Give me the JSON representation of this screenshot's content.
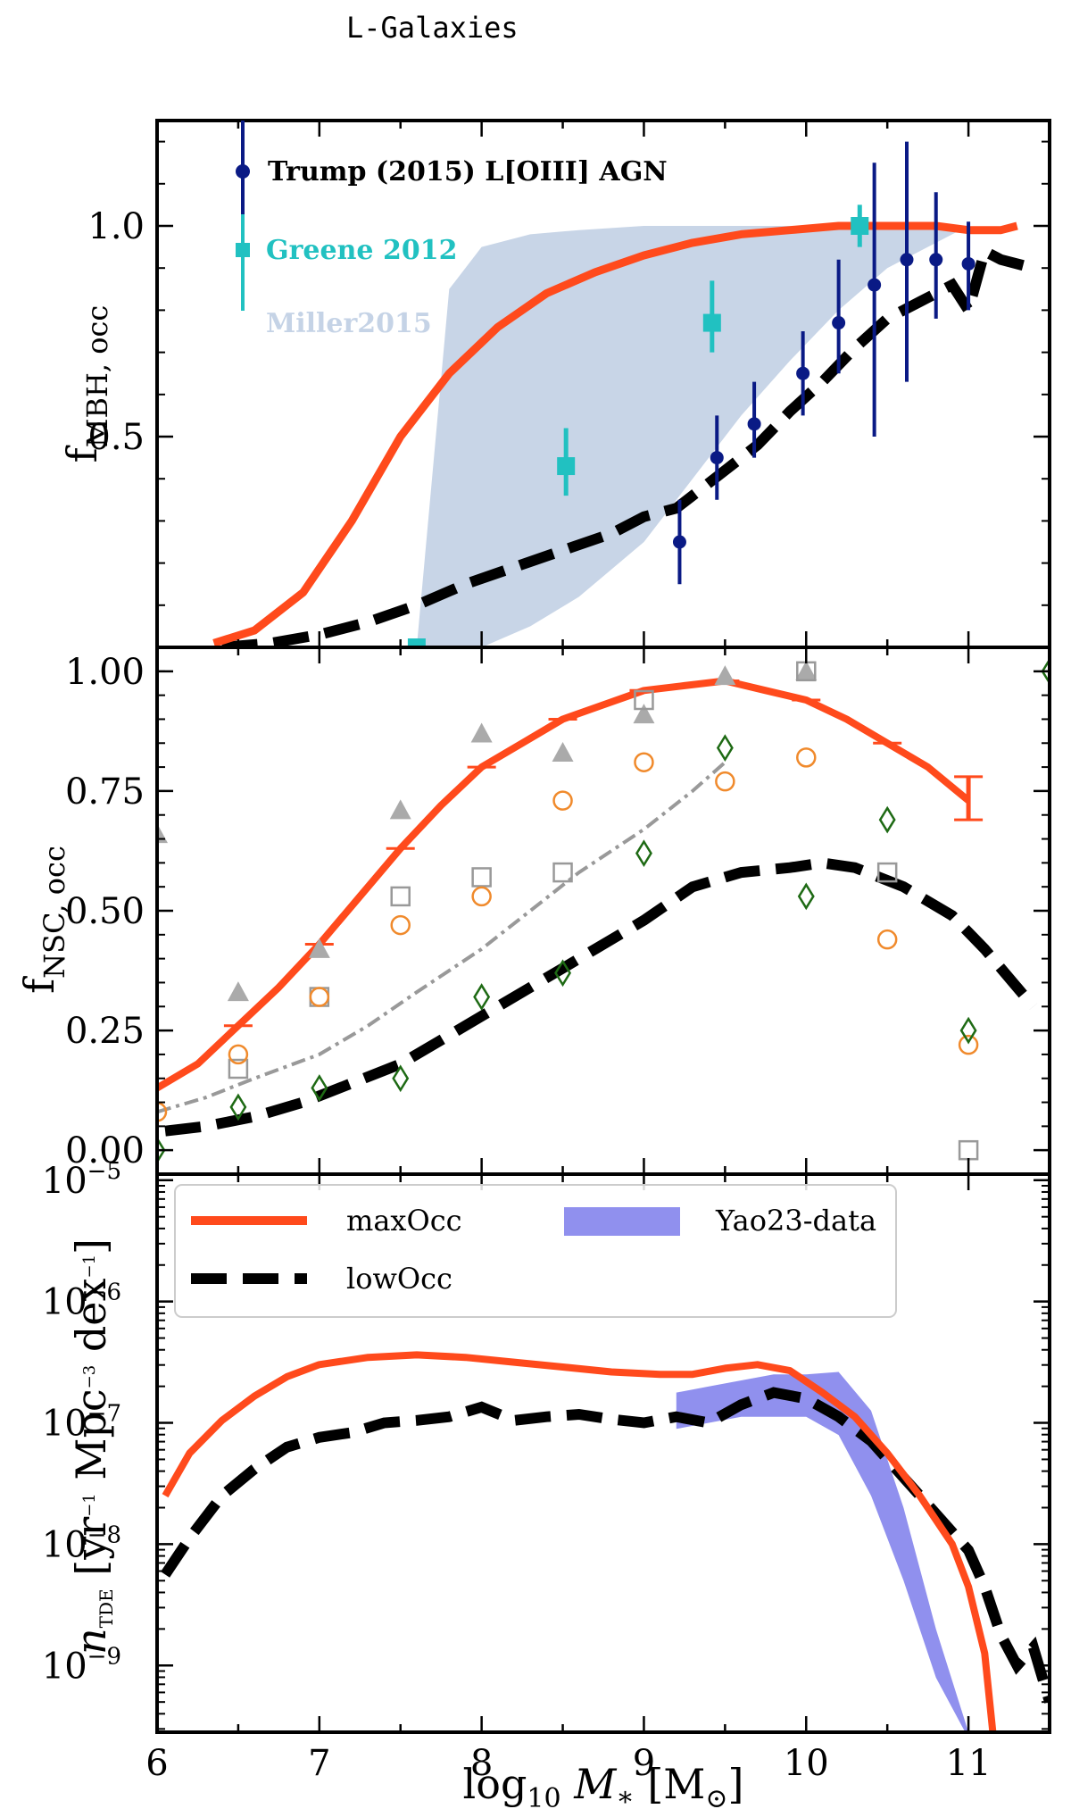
{
  "figure_title": "L-Galaxies",
  "colors": {
    "maxOcc": "#ff4a1c",
    "lowOcc": "#000000",
    "trump": "#0a1a85",
    "greene": "#21c1c1",
    "miller": "#c5d3e6",
    "yao": "#7c7ceb",
    "gray_line": "#999999",
    "triangle": "#aaaaaa",
    "square": "#999999",
    "circle": "#f08a2c",
    "diamond": "#1e6a14"
  },
  "chart_data": [
    {
      "id": "top",
      "type": "line",
      "ylabel_main": "f",
      "ylabel_sub": "MBH, occ",
      "xlim": [
        6,
        11.5
      ],
      "ylim": [
        0,
        1.25
      ],
      "yticks": [
        {
          "v": 0.5,
          "label": "0.5"
        },
        {
          "v": 1.0,
          "label": "1.0"
        }
      ],
      "legend": {
        "trump": "Trump (2015) L[OIII] AGN",
        "greene": "Greene 2012",
        "miller": "Miller2015"
      },
      "series": [
        {
          "name": "maxOcc",
          "x": [
            6.35,
            6.6,
            6.9,
            7.2,
            7.5,
            7.8,
            8.1,
            8.4,
            8.7,
            9.0,
            9.3,
            9.6,
            9.9,
            10.2,
            10.5,
            10.8,
            11.0,
            11.2,
            11.3
          ],
          "y": [
            0.01,
            0.04,
            0.13,
            0.3,
            0.5,
            0.65,
            0.76,
            0.84,
            0.89,
            0.93,
            0.96,
            0.98,
            0.99,
            1.0,
            1.0,
            1.0,
            0.99,
            0.99,
            1.0
          ]
        },
        {
          "name": "lowOcc",
          "x": [
            6.4,
            6.7,
            7.0,
            7.3,
            7.6,
            7.9,
            8.2,
            8.5,
            8.8,
            9.0,
            9.2,
            9.3,
            9.5,
            9.7,
            9.9,
            10.1,
            10.3,
            10.5,
            10.7,
            10.9,
            11.0,
            11.1,
            11.2,
            11.4
          ],
          "y": [
            0.0,
            0.01,
            0.03,
            0.06,
            0.1,
            0.15,
            0.19,
            0.23,
            0.27,
            0.31,
            0.33,
            0.36,
            0.42,
            0.48,
            0.56,
            0.63,
            0.71,
            0.78,
            0.82,
            0.86,
            0.8,
            0.94,
            0.92,
            0.9
          ]
        },
        {
          "name": "Trump",
          "points": [
            {
              "x": 6.25,
              "y": 1.14,
              "lo": 0.93,
              "hi": 1.36
            },
            {
              "x": 9.22,
              "y": 0.25,
              "lo": 0.15,
              "hi": 0.35
            },
            {
              "x": 9.45,
              "y": 0.45,
              "lo": 0.35,
              "hi": 0.55
            },
            {
              "x": 9.68,
              "y": 0.53,
              "lo": 0.45,
              "hi": 0.63
            },
            {
              "x": 9.98,
              "y": 0.65,
              "lo": 0.55,
              "hi": 0.75
            },
            {
              "x": 10.2,
              "y": 0.77,
              "lo": 0.65,
              "hi": 0.92
            },
            {
              "x": 10.42,
              "y": 0.86,
              "lo": 0.5,
              "hi": 1.15
            },
            {
              "x": 10.62,
              "y": 0.92,
              "lo": 0.63,
              "hi": 1.2
            },
            {
              "x": 10.8,
              "y": 0.92,
              "lo": 0.78,
              "hi": 1.08
            },
            {
              "x": 11.0,
              "y": 0.91,
              "lo": 0.8,
              "hi": 1.01
            }
          ]
        },
        {
          "name": "Greene",
          "points": [
            {
              "x": 6.25,
              "y": 0.98,
              "lo": 0.8,
              "hi": 1.18
            },
            {
              "x": 7.6,
              "y": 0.0,
              "lo": 0.0,
              "hi": 0.0
            },
            {
              "x": 8.52,
              "y": 0.43,
              "lo": 0.36,
              "hi": 0.52
            },
            {
              "x": 9.42,
              "y": 0.77,
              "lo": 0.7,
              "hi": 0.87
            },
            {
              "x": 10.33,
              "y": 1.0,
              "lo": 0.95,
              "hi": 1.05
            }
          ]
        },
        {
          "name": "Miller2015",
          "band_x": [
            7.6,
            7.8,
            8.0,
            8.3,
            8.6,
            9.0,
            9.3,
            9.6,
            9.9,
            10.2,
            10.5,
            10.8,
            11.0
          ],
          "band_lo": [
            0.0,
            0.0,
            0.0,
            0.05,
            0.12,
            0.25,
            0.4,
            0.55,
            0.68,
            0.8,
            0.9,
            0.96,
            1.0
          ],
          "band_hi": [
            0.0,
            0.85,
            0.95,
            0.98,
            0.99,
            1.0,
            1.0,
            1.0,
            1.0,
            1.0,
            1.0,
            1.0,
            1.0
          ]
        }
      ]
    },
    {
      "id": "middle",
      "type": "line",
      "ylabel_main": "f",
      "ylabel_sub": "NSC, occ",
      "xlim": [
        6,
        11.5
      ],
      "ylim": [
        -0.05,
        1.05
      ],
      "yticks": [
        {
          "v": 0.0,
          "label": "0.00"
        },
        {
          "v": 0.25,
          "label": "0.25"
        },
        {
          "v": 0.5,
          "label": "0.50"
        },
        {
          "v": 0.75,
          "label": "0.75"
        },
        {
          "v": 1.0,
          "label": "1.00"
        }
      ],
      "series": [
        {
          "name": "maxOcc",
          "x": [
            6.0,
            6.25,
            6.5,
            6.75,
            7.0,
            7.25,
            7.5,
            7.75,
            8.0,
            8.25,
            8.5,
            8.75,
            9.0,
            9.25,
            9.5,
            9.75,
            10.0,
            10.25,
            10.5,
            10.75,
            11.0
          ],
          "y": [
            0.13,
            0.18,
            0.26,
            0.34,
            0.43,
            0.53,
            0.63,
            0.72,
            0.8,
            0.85,
            0.9,
            0.93,
            0.96,
            0.97,
            0.98,
            0.96,
            0.94,
            0.9,
            0.85,
            0.8,
            0.73
          ]
        },
        {
          "name": "maxOcc_err",
          "points": [
            {
              "x": 6.5,
              "y": 0.26,
              "lo": 0.26,
              "hi": 0.26
            },
            {
              "x": 7.0,
              "y": 0.43,
              "lo": 0.43,
              "hi": 0.43
            },
            {
              "x": 7.5,
              "y": 0.63,
              "lo": 0.63,
              "hi": 0.63
            },
            {
              "x": 8.0,
              "y": 0.8,
              "lo": 0.8,
              "hi": 0.8
            },
            {
              "x": 8.5,
              "y": 0.9,
              "lo": 0.9,
              "hi": 0.9
            },
            {
              "x": 9.0,
              "y": 0.96,
              "lo": 0.96,
              "hi": 0.96
            },
            {
              "x": 9.5,
              "y": 0.98,
              "lo": 0.98,
              "hi": 0.98
            },
            {
              "x": 10.0,
              "y": 0.94,
              "lo": 0.94,
              "hi": 0.94
            },
            {
              "x": 10.5,
              "y": 0.85,
              "lo": 0.85,
              "hi": 0.85
            },
            {
              "x": 11.0,
              "y": 0.73,
              "lo": 0.69,
              "hi": 0.78
            }
          ]
        },
        {
          "name": "lowOcc",
          "x": [
            6.05,
            6.3,
            6.6,
            6.9,
            7.2,
            7.5,
            7.8,
            8.1,
            8.4,
            8.7,
            9.0,
            9.3,
            9.6,
            9.9,
            10.1,
            10.3,
            10.6,
            10.9,
            11.1,
            11.4
          ],
          "y": [
            0.04,
            0.05,
            0.07,
            0.1,
            0.14,
            0.18,
            0.24,
            0.3,
            0.36,
            0.42,
            0.48,
            0.55,
            0.58,
            0.59,
            0.6,
            0.59,
            0.55,
            0.49,
            0.42,
            0.3
          ]
        },
        {
          "name": "grayDashDot",
          "x": [
            6.0,
            6.3,
            6.6,
            7.0,
            7.3,
            7.6,
            8.0,
            8.3,
            8.6,
            9.0,
            9.3,
            9.5
          ],
          "y": [
            0.08,
            0.11,
            0.15,
            0.2,
            0.26,
            0.33,
            0.42,
            0.5,
            0.58,
            0.67,
            0.75,
            0.81
          ]
        },
        {
          "name": "triangles",
          "x": [
            6.0,
            6.5,
            7.0,
            7.5,
            8.0,
            8.5,
            9.0,
            9.5,
            10.0
          ],
          "y": [
            0.66,
            0.33,
            0.42,
            0.71,
            0.87,
            0.83,
            0.91,
            0.99,
            1.0
          ]
        },
        {
          "name": "squares",
          "x": [
            6.5,
            7.0,
            7.5,
            8.0,
            8.5,
            9.0,
            10.0,
            10.5,
            11.0
          ],
          "y": [
            0.17,
            0.32,
            0.53,
            0.57,
            0.58,
            0.94,
            1.0,
            0.58,
            0.0
          ]
        },
        {
          "name": "circles",
          "x": [
            6.0,
            6.5,
            7.0,
            7.5,
            8.0,
            8.5,
            9.0,
            9.5,
            10.0,
            10.5,
            11.0
          ],
          "y": [
            0.08,
            0.2,
            0.32,
            0.47,
            0.53,
            0.73,
            0.81,
            0.77,
            0.82,
            0.44,
            0.22
          ]
        },
        {
          "name": "diamonds",
          "x": [
            6.0,
            6.5,
            7.0,
            7.5,
            8.0,
            8.5,
            9.0,
            9.5,
            10.0,
            10.5,
            11.0,
            11.5
          ],
          "y": [
            0.0,
            0.09,
            0.13,
            0.15,
            0.32,
            0.37,
            0.62,
            0.84,
            0.53,
            0.69,
            0.25,
            1.0
          ]
        }
      ]
    },
    {
      "id": "bottom",
      "type": "line",
      "ylabel": "ṅTDE [yr⁻¹ Mpc⁻³ dex⁻¹]",
      "ylabel_main": "n",
      "ylabel_sub": "TDE",
      "ylabel_unit": "[yr",
      "ylabel_unit2": "Mpc",
      "ylabel_unit3": "dex",
      "ylabel_sup": "−1",
      "ylabel_sup2": "−3",
      "ylabel_close": "]",
      "xlabel": "log10 M∗ [M⊙]",
      "xlabel_pre": "log",
      "xlabel_sub": "10",
      "xlabel_m": "M",
      "xlabel_star": "∗",
      "xlabel_unit": "[M",
      "xlabel_sun": "⊙",
      "xlabel_close": "]",
      "xlim": [
        6,
        11.5
      ],
      "ylim_log": [
        -9.55,
        -4.95
      ],
      "xticks": [
        {
          "v": 6,
          "label": "6"
        },
        {
          "v": 7,
          "label": "7"
        },
        {
          "v": 8,
          "label": "8"
        },
        {
          "v": 9,
          "label": "9"
        },
        {
          "v": 10,
          "label": "10"
        },
        {
          "v": 11,
          "label": "11"
        }
      ],
      "yticks": [
        {
          "v": -5,
          "base": "10",
          "exp": "−5"
        },
        {
          "v": -6,
          "base": "10",
          "exp": "−6"
        },
        {
          "v": -7,
          "base": "10",
          "exp": "−7"
        },
        {
          "v": -8,
          "base": "10",
          "exp": "−8"
        },
        {
          "v": -9,
          "base": "10",
          "exp": "−9"
        }
      ],
      "legend": {
        "maxOcc": "maxOcc",
        "lowOcc": "lowOcc",
        "yao": "Yao23-data"
      },
      "series": [
        {
          "name": "maxOcc",
          "x": [
            6.05,
            6.2,
            6.4,
            6.6,
            6.8,
            7.0,
            7.3,
            7.6,
            7.9,
            8.2,
            8.5,
            8.8,
            9.1,
            9.3,
            9.5,
            9.7,
            9.9,
            10.1,
            10.3,
            10.5,
            10.7,
            10.9,
            11.0,
            11.1,
            11.15
          ],
          "logy": [
            -7.6,
            -7.25,
            -6.98,
            -6.78,
            -6.62,
            -6.52,
            -6.46,
            -6.44,
            -6.46,
            -6.5,
            -6.54,
            -6.58,
            -6.6,
            -6.6,
            -6.55,
            -6.52,
            -6.57,
            -6.75,
            -6.95,
            -7.25,
            -7.6,
            -8.0,
            -8.35,
            -8.9,
            -9.55
          ]
        },
        {
          "name": "lowOcc",
          "x": [
            6.05,
            6.2,
            6.4,
            6.6,
            6.8,
            7.0,
            7.2,
            7.4,
            7.6,
            7.8,
            8.0,
            8.2,
            8.4,
            8.6,
            8.8,
            9.0,
            9.2,
            9.4,
            9.6,
            9.8,
            10.0,
            10.2,
            10.4,
            10.6,
            10.8,
            11.0,
            11.1,
            11.2,
            11.3,
            11.4,
            11.5
          ],
          "logy": [
            -8.25,
            -7.95,
            -7.6,
            -7.38,
            -7.2,
            -7.12,
            -7.08,
            -7.0,
            -6.98,
            -6.95,
            -6.87,
            -6.98,
            -6.95,
            -6.93,
            -6.97,
            -7.0,
            -6.95,
            -7.0,
            -6.85,
            -6.75,
            -6.8,
            -6.95,
            -7.15,
            -7.45,
            -7.75,
            -8.05,
            -8.35,
            -8.75,
            -9.0,
            -8.85,
            -9.3
          ]
        },
        {
          "name": "Yao23-data",
          "band_x": [
            9.2,
            9.4,
            9.6,
            9.8,
            10.0,
            10.2,
            10.4,
            10.6,
            10.8,
            11.0
          ],
          "band_lo": [
            -7.05,
            -7.0,
            -6.95,
            -6.95,
            -6.95,
            -7.1,
            -7.6,
            -8.3,
            -9.1,
            -9.6
          ],
          "band_hi": [
            -6.75,
            -6.7,
            -6.65,
            -6.6,
            -6.6,
            -6.58,
            -6.9,
            -7.7,
            -8.7,
            -9.55
          ]
        }
      ]
    }
  ]
}
